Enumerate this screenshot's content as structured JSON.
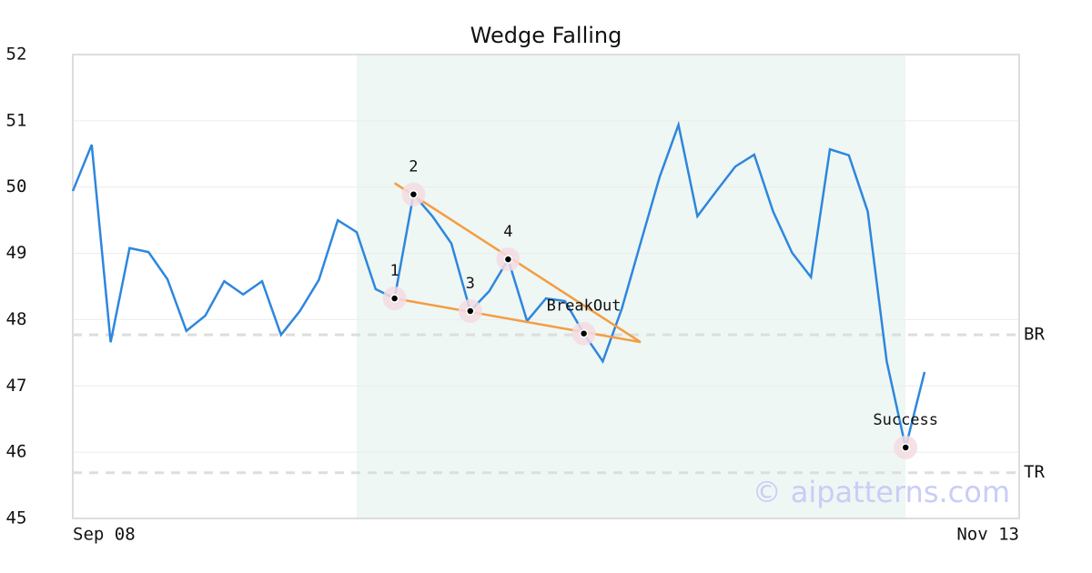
{
  "chart_data": {
    "type": "line",
    "title": "Wedge Falling",
    "categories": [
      "Sep 08",
      null,
      null,
      null,
      null,
      null,
      null,
      null,
      null,
      null,
      null,
      null,
      null,
      null,
      null,
      null,
      null,
      null,
      null,
      null,
      null,
      null,
      null,
      null,
      null,
      null,
      null,
      null,
      null,
      null,
      null,
      null,
      null,
      null,
      null,
      null,
      null,
      null,
      null,
      null,
      null,
      null,
      null,
      null,
      null,
      null,
      null,
      null,
      null,
      null,
      "Nov 13"
    ],
    "values": [
      49.94,
      50.64,
      47.66,
      49.08,
      49.02,
      48.61,
      47.83,
      48.06,
      48.58,
      48.38,
      48.58,
      47.77,
      48.13,
      48.6,
      49.5,
      49.32,
      48.46,
      48.32,
      49.89,
      49.56,
      49.15,
      48.13,
      48.43,
      48.91,
      47.98,
      48.32,
      48.28,
      47.79,
      47.37,
      48.16,
      49.16,
      50.15,
      50.94,
      49.56,
      49.94,
      50.31,
      50.49,
      49.63,
      49.01,
      48.64,
      50.57,
      50.48,
      49.63,
      47.37,
      46.07,
      47.21,
      null,
      null,
      null,
      null,
      null
    ],
    "color": "#2e86de",
    "ylim": [
      45,
      52
    ],
    "yticks": [
      45,
      46,
      47,
      48,
      49,
      50,
      51,
      52
    ],
    "grid": true,
    "shaded_region": {
      "start": 15,
      "end": 44,
      "color": "#eef7f3"
    },
    "levels": [
      {
        "label": "BR",
        "value": 47.77
      },
      {
        "label": "TR",
        "value": 45.69
      }
    ],
    "trendlines": [
      {
        "x": [
          17,
          30
        ],
        "y": [
          50.06,
          47.66
        ],
        "color": "#f59c42"
      },
      {
        "x": [
          17,
          30
        ],
        "y": [
          48.32,
          47.66
        ],
        "color": "#f59c42"
      }
    ],
    "markers": [
      {
        "label": "1",
        "index": 17
      },
      {
        "label": "2",
        "index": 18
      },
      {
        "label": "3",
        "index": 21
      },
      {
        "label": "4",
        "index": 23
      },
      {
        "label": "BreakOut",
        "index": 27
      },
      {
        "label": "Success",
        "index": 44
      }
    ],
    "watermark": "© aipatterns.com"
  }
}
